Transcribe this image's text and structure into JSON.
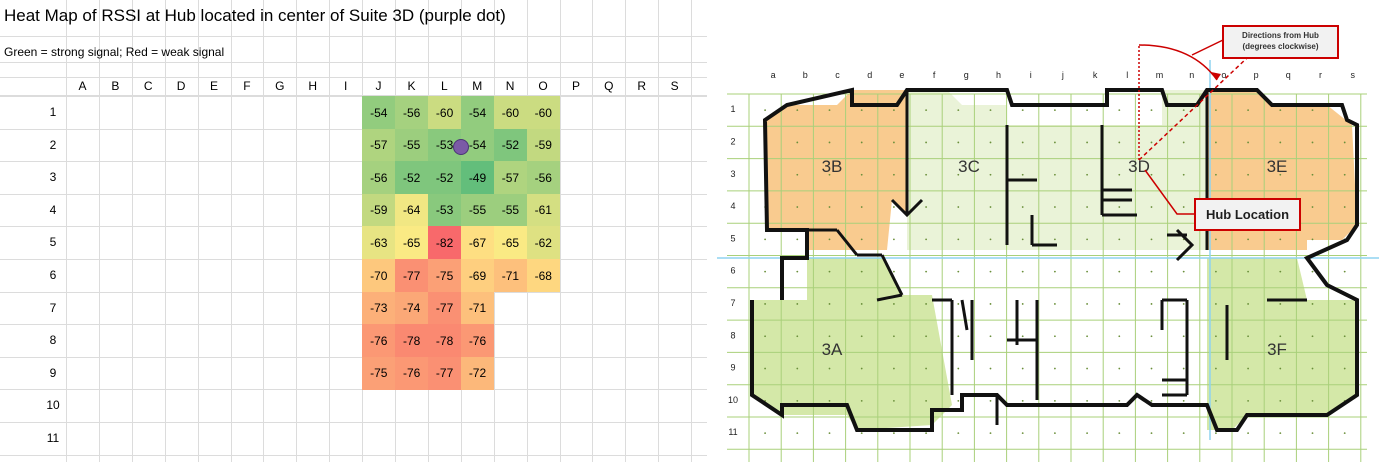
{
  "spreadsheet": {
    "title": "Heat Map of RSSI at Hub located in center of Suite 3D (purple dot)",
    "legend_note": "Green = strong signal;  Red = weak signal",
    "columns": [
      "A",
      "B",
      "C",
      "D",
      "E",
      "F",
      "G",
      "H",
      "I",
      "J",
      "K",
      "L",
      "M",
      "N",
      "O",
      "P",
      "Q",
      "R",
      "S"
    ],
    "rows": [
      "1",
      "2",
      "3",
      "4",
      "5",
      "6",
      "7",
      "8",
      "9",
      "10",
      "11"
    ]
  },
  "chart_data": {
    "type": "heatmap",
    "title": "Heat Map of RSSI at Hub located in center of Suite 3D (purple dot)",
    "subtitle": "Green = strong signal;  Red = weak signal",
    "x_categories": [
      "J",
      "K",
      "L",
      "M",
      "N",
      "O"
    ],
    "y_categories": [
      "1",
      "2",
      "3",
      "4",
      "5",
      "6",
      "7",
      "8",
      "9"
    ],
    "values": [
      [
        -54,
        -56,
        -60,
        -54,
        -60,
        -60
      ],
      [
        -57,
        -55,
        -53,
        -54,
        -52,
        -59
      ],
      [
        -56,
        -52,
        -52,
        -49,
        -57,
        -56
      ],
      [
        -59,
        -64,
        -53,
        -55,
        -55,
        -61
      ],
      [
        -63,
        -65,
        -82,
        -67,
        -65,
        -62
      ],
      [
        -70,
        -77,
        -75,
        -69,
        -71,
        -68
      ],
      [
        -73,
        -74,
        -77,
        -71,
        null,
        null
      ],
      [
        -76,
        -78,
        -78,
        -76,
        null,
        null
      ],
      [
        -75,
        -76,
        -77,
        -72,
        null,
        null
      ]
    ],
    "color_scale": {
      "strong": "#63be7b",
      "mid": "#ffeb84",
      "weak": "#f8696b",
      "min": -82,
      "max": -49
    },
    "hub_marker": {
      "color": "#7b5aa6"
    }
  },
  "floorplan": {
    "column_letters": [
      "a",
      "b",
      "c",
      "d",
      "e",
      "f",
      "g",
      "h",
      "i",
      "j",
      "k",
      "l",
      "m",
      "n",
      "o",
      "p",
      "q",
      "r",
      "s"
    ],
    "row_numbers": [
      "1",
      "2",
      "3",
      "4",
      "5",
      "6",
      "7",
      "8",
      "9",
      "10",
      "11"
    ],
    "suites": [
      {
        "label": "3B",
        "color": "#f9cb8f"
      },
      {
        "label": "3C",
        "color": "#eaf3d8"
      },
      {
        "label": "3D",
        "color": "#eaf3d8"
      },
      {
        "label": "3E",
        "color": "#f9cb8f"
      },
      {
        "label": "3A",
        "color": "#d4e8a8"
      },
      {
        "label": "3F",
        "color": "#d4e8a8"
      }
    ],
    "callout_directions": "Directions from  Hub\n(degrees clockwise)",
    "callout_hub": "Hub Location",
    "colors": {
      "grid": "#a9d07a",
      "wall": "#111111",
      "axis": "#8fd3f0",
      "callout": "#cc0000"
    }
  }
}
